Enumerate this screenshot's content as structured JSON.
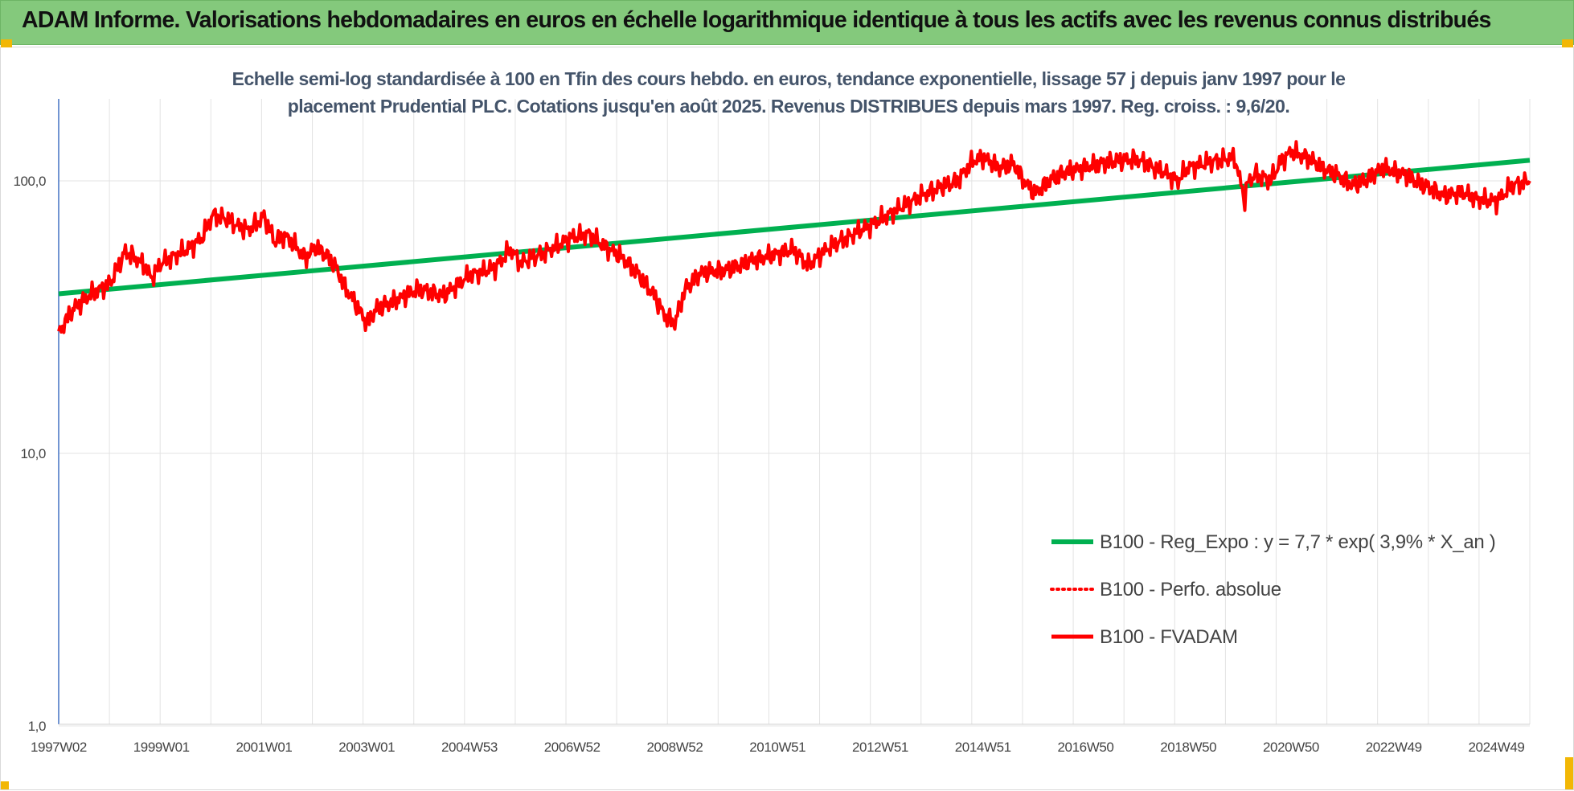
{
  "header": {
    "title": "ADAM Informe. Valorisations hebdomadaires en euros en échelle logarithmique identique à tous les actifs avec les revenus connus distribués"
  },
  "colors": {
    "header_bg": "#84c97c",
    "series_regression": "#00b050",
    "series_perfo": "#ff0000",
    "series_fvadam": "#ff0000",
    "corner_marker": "#f2b705"
  },
  "chart_data": {
    "type": "line",
    "title_lines": [
      "Echelle semi-log standardisée à 100 en Tfin des cours hebdo. en euros, tendance exponentielle, lissage 57 j depuis janv 1997 pour le",
      "placement Prudential PLC. Cotations jusqu'en août 2025.  Revenus DISTRIBUES depuis mars 1997. Reg. croiss. : 9,6/20."
    ],
    "y_scale": "log",
    "ylim": [
      1,
      200
    ],
    "y_ticks": [
      {
        "value": 100,
        "label": "100,0"
      },
      {
        "value": 10,
        "label": "10,0"
      },
      {
        "value": 1,
        "label": "1,0"
      }
    ],
    "xlim": [
      1997.0,
      2025.65
    ],
    "x_ticks": [
      {
        "value": 1997.0,
        "label": "1997W02"
      },
      {
        "value": 1999.0,
        "label": "1999W01"
      },
      {
        "value": 2001.0,
        "label": "2001W01"
      },
      {
        "value": 2003.0,
        "label": "2003W01"
      },
      {
        "value": 2005.0,
        "label": "2004W53"
      },
      {
        "value": 2007.0,
        "label": "2006W52"
      },
      {
        "value": 2009.0,
        "label": "2008W52"
      },
      {
        "value": 2011.0,
        "label": "2010W51"
      },
      {
        "value": 2013.0,
        "label": "2012W51"
      },
      {
        "value": 2015.0,
        "label": "2014W51"
      },
      {
        "value": 2017.0,
        "label": "2016W50"
      },
      {
        "value": 2019.0,
        "label": "2018W50"
      },
      {
        "value": 2021.0,
        "label": "2020W50"
      },
      {
        "value": 2023.0,
        "label": "2022W49"
      },
      {
        "value": 2025.0,
        "label": "2024W49"
      }
    ],
    "grid": "vertical",
    "legend_position": "bottom-right",
    "series": [
      {
        "name": "B100 - Reg_Expo : y = 7,7 * exp( 3,9% *  X_an )",
        "style": "solid-green",
        "x": [
          1997.0,
          2025.65
        ],
        "y": [
          38.5,
          119
        ]
      },
      {
        "name": "B100 - Perfo. absolue",
        "style": "dotted-red",
        "x": [],
        "y": []
      },
      {
        "name": "B100 - FVADAM",
        "style": "solid-red",
        "x": [
          1997.0,
          1997.1,
          1997.3,
          1997.6,
          1998.0,
          1998.3,
          1998.5,
          1998.7,
          1998.8,
          1999.0,
          1999.5,
          1999.8,
          2000.0,
          2000.3,
          2000.5,
          2000.7,
          2001.0,
          2001.2,
          2001.4,
          2001.6,
          2001.8,
          2002.0,
          2002.2,
          2002.4,
          2002.6,
          2002.8,
          2003.0,
          2003.2,
          2003.5,
          2004.0,
          2004.5,
          2005.0,
          2005.5,
          2005.8,
          2006.0,
          2006.5,
          2007.0,
          2007.3,
          2007.6,
          2008.0,
          2008.3,
          2008.6,
          2008.8,
          2009.0,
          2009.2,
          2009.5,
          2010.0,
          2010.5,
          2011.0,
          2011.3,
          2011.6,
          2012.0,
          2012.5,
          2013.0,
          2013.5,
          2014.0,
          2014.5,
          2014.8,
          2015.0,
          2015.3,
          2015.6,
          2015.8,
          2016.0,
          2016.3,
          2016.6,
          2017.0,
          2017.5,
          2018.0,
          2018.5,
          2018.8,
          2019.0,
          2019.5,
          2019.9,
          2020.1,
          2020.15,
          2020.3,
          2020.6,
          2020.8,
          2021.0,
          2021.3,
          2021.6,
          2021.9,
          2022.2,
          2022.5,
          2022.8,
          2023.0,
          2023.2,
          2023.5,
          2024.0,
          2024.3,
          2024.6,
          2024.8,
          2025.0,
          2025.3,
          2025.65
        ],
        "y": [
          27,
          30,
          34,
          38,
          42,
          55,
          52,
          48,
          44,
          50,
          56,
          62,
          75,
          72,
          68,
          66,
          74,
          60,
          63,
          58,
          52,
          57,
          54,
          48,
          40,
          35,
          30,
          34,
          36,
          40,
          38,
          45,
          48,
          56,
          50,
          55,
          62,
          64,
          58,
          52,
          45,
          38,
          32,
          30,
          40,
          46,
          47,
          51,
          54,
          56,
          49,
          57,
          64,
          72,
          82,
          92,
          100,
          118,
          122,
          112,
          115,
          100,
          90,
          100,
          108,
          112,
          118,
          120,
          108,
          100,
          112,
          118,
          122,
          85,
          98,
          106,
          100,
          118,
          128,
          122,
          112,
          105,
          96,
          102,
          112,
          108,
          106,
          98,
          88,
          91,
          86,
          85,
          84,
          96,
          100
        ]
      }
    ]
  }
}
